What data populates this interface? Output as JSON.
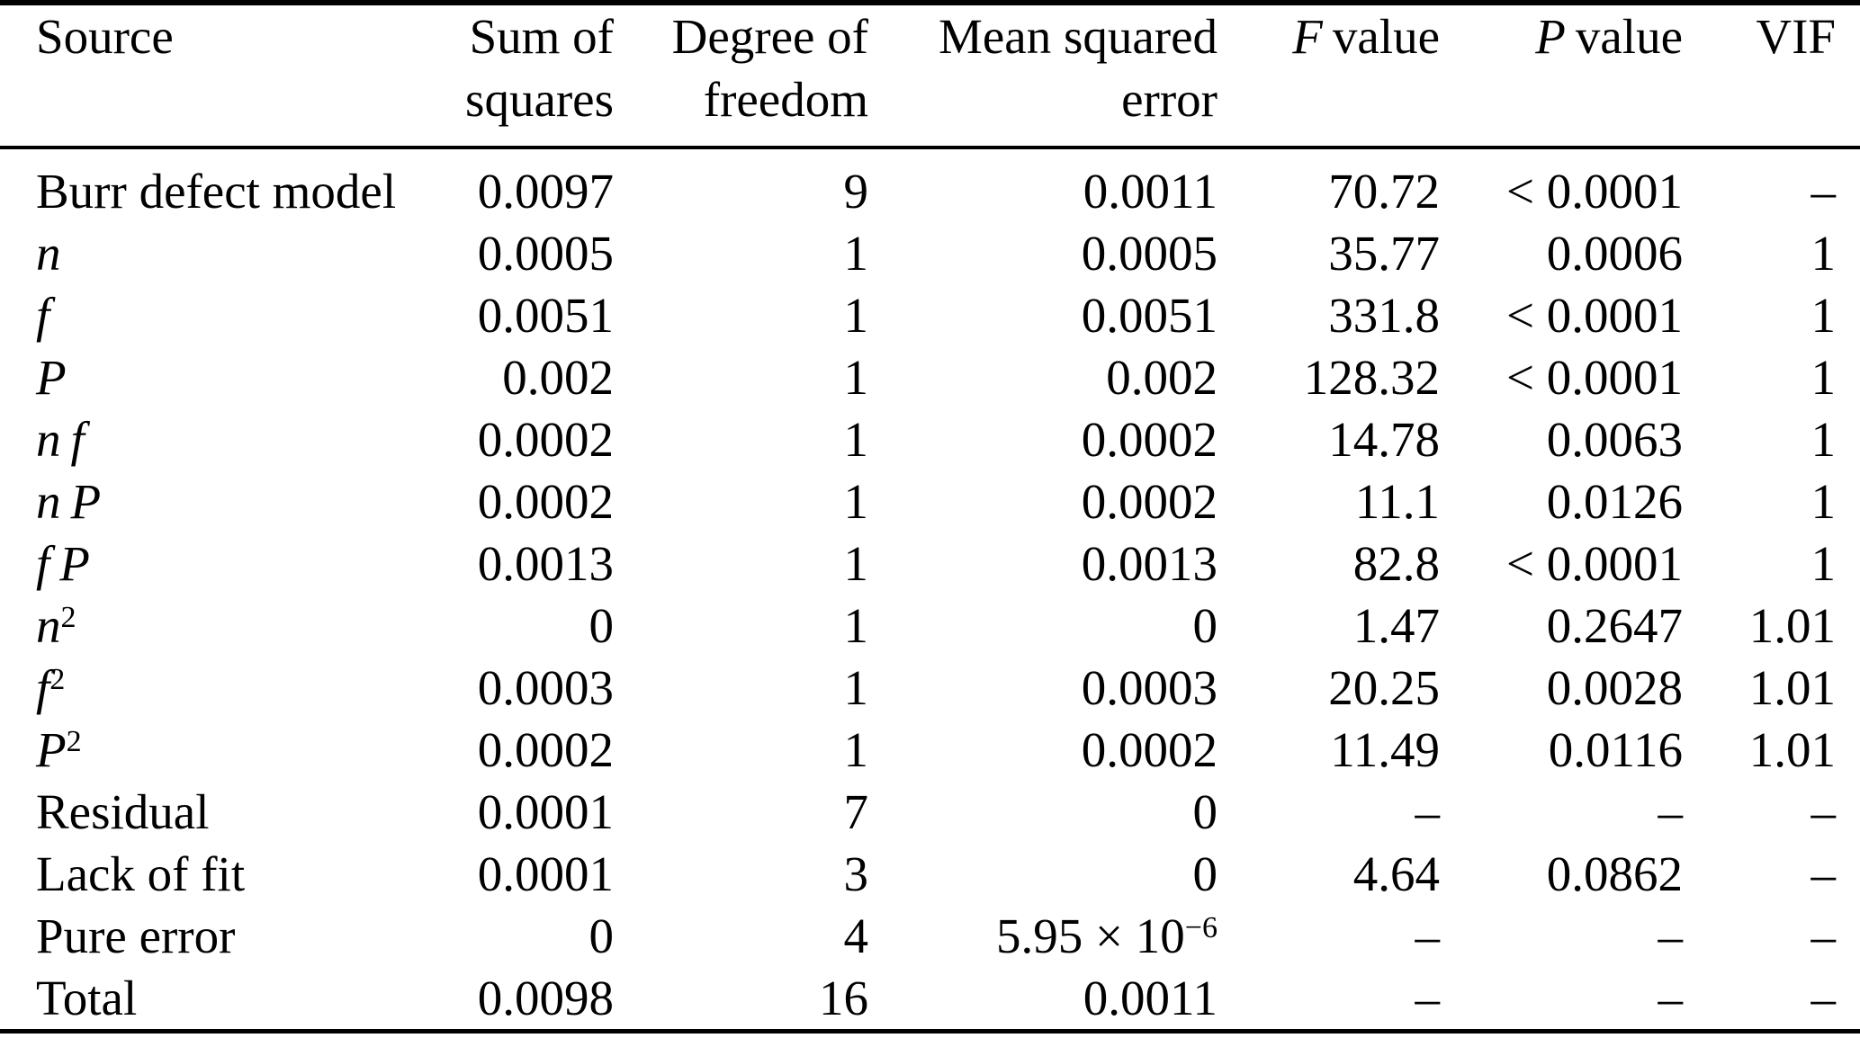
{
  "table": {
    "columns": [
      {
        "key": "source",
        "align": "left",
        "lines": [
          [
            {
              "t": "Source"
            }
          ]
        ]
      },
      {
        "key": "sum-of-squares",
        "align": "right",
        "lines": [
          [
            {
              "t": "Sum of"
            }
          ],
          [
            {
              "t": "squares"
            }
          ]
        ]
      },
      {
        "key": "degree-of-freedom",
        "align": "right",
        "lines": [
          [
            {
              "t": "Degree of"
            }
          ],
          [
            {
              "t": "freedom"
            }
          ]
        ]
      },
      {
        "key": "mean-squared-error",
        "align": "right",
        "lines": [
          [
            {
              "t": "Mean squared"
            }
          ],
          [
            {
              "t": "error"
            }
          ]
        ]
      },
      {
        "key": "f-value",
        "align": "right",
        "lines": [
          [
            {
              "t": "F",
              "i": true
            },
            {
              "t": " value"
            }
          ]
        ]
      },
      {
        "key": "p-value",
        "align": "right",
        "lines": [
          [
            {
              "t": "P",
              "i": true
            },
            {
              "t": " value"
            }
          ]
        ]
      },
      {
        "key": "vif",
        "align": "right",
        "lines": [
          [
            {
              "t": "VIF"
            }
          ]
        ]
      }
    ],
    "rows": [
      {
        "source": [
          {
            "t": "Burr defect model"
          }
        ],
        "cells": [
          "0.0097",
          "9",
          "0.0011",
          "70.72",
          "< 0.0001",
          "–"
        ]
      },
      {
        "source": [
          {
            "t": "n",
            "i": true
          }
        ],
        "cells": [
          "0.0005",
          "1",
          "0.0005",
          "35.77",
          "0.0006",
          "1"
        ]
      },
      {
        "source": [
          {
            "t": "f",
            "i": true
          }
        ],
        "cells": [
          "0.0051",
          "1",
          "0.0051",
          "331.8",
          "< 0.0001",
          "1"
        ]
      },
      {
        "source": [
          {
            "t": "P",
            "i": true
          }
        ],
        "cells": [
          "0.002",
          "1",
          "0.002",
          "128.32",
          "< 0.0001",
          "1"
        ]
      },
      {
        "source": [
          {
            "t": "n f",
            "i": true
          }
        ],
        "cells": [
          "0.0002",
          "1",
          "0.0002",
          "14.78",
          "0.0063",
          "1"
        ]
      },
      {
        "source": [
          {
            "t": "n P",
            "i": true
          }
        ],
        "cells": [
          "0.0002",
          "1",
          "0.0002",
          "11.1",
          "0.0126",
          "1"
        ]
      },
      {
        "source": [
          {
            "t": "f P",
            "i": true
          }
        ],
        "cells": [
          "0.0013",
          "1",
          "0.0013",
          "82.8",
          "< 0.0001",
          "1"
        ]
      },
      {
        "source": [
          {
            "t": "n",
            "i": true
          },
          {
            "t": "2",
            "sup": true
          }
        ],
        "cells": [
          "0",
          "1",
          "0",
          "1.47",
          "0.2647",
          "1.01"
        ]
      },
      {
        "source": [
          {
            "t": "f",
            "i": true
          },
          {
            "t": "2",
            "sup": true
          }
        ],
        "cells": [
          "0.0003",
          "1",
          "0.0003",
          "20.25",
          "0.0028",
          "1.01"
        ]
      },
      {
        "source": [
          {
            "t": "P",
            "i": true
          },
          {
            "t": "2",
            "sup": true
          }
        ],
        "cells": [
          "0.0002",
          "1",
          "0.0002",
          "11.49",
          "0.0116",
          "1.01"
        ]
      },
      {
        "source": [
          {
            "t": "Residual"
          }
        ],
        "cells": [
          "0.0001",
          "7",
          "0",
          "–",
          "–",
          "–"
        ]
      },
      {
        "source": [
          {
            "t": "Lack of fit"
          }
        ],
        "cells": [
          "0.0001",
          "3",
          "0",
          "4.64",
          "0.0862",
          "–"
        ]
      },
      {
        "source": [
          {
            "t": "Pure error"
          }
        ],
        "cells": [
          "0",
          "4",
          {
            "segs": [
              {
                "t": "5.95 × 10"
              },
              {
                "t": "−6",
                "sup": true
              }
            ]
          },
          "–",
          "–",
          "–"
        ]
      },
      {
        "source": [
          {
            "t": "Total"
          }
        ],
        "cells": [
          "0.0098",
          "16",
          "0.0011",
          "–",
          "–",
          "–"
        ]
      }
    ]
  }
}
